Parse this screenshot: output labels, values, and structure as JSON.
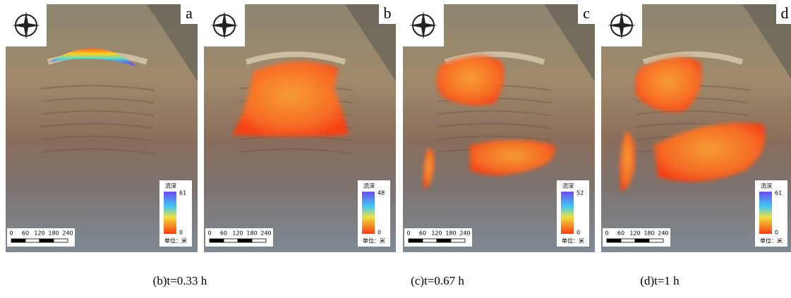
{
  "panels": [
    {
      "letter": "a",
      "legend": {
        "title": "流深",
        "max": "61",
        "min": "0",
        "unit": "单位：米"
      },
      "scale": [
        "0",
        "60",
        "120",
        "180",
        "240"
      ]
    },
    {
      "letter": "b",
      "legend": {
        "title": "流深",
        "max": "48",
        "min": "0",
        "unit": "单位：米"
      },
      "scale": [
        "0",
        "60",
        "120",
        "180",
        "240"
      ]
    },
    {
      "letter": "c",
      "legend": {
        "title": "流深",
        "max": "52",
        "min": "0",
        "unit": "单位：米"
      },
      "scale": [
        "0",
        "60",
        "120",
        "180",
        "240"
      ]
    },
    {
      "letter": "d",
      "legend": {
        "title": "流深",
        "max": "61",
        "min": "0",
        "unit": "单位：米"
      },
      "scale": [
        "0",
        "60",
        "120",
        "180",
        "240"
      ]
    }
  ],
  "captions": [
    "(b)t=0.33 h",
    "(c)t=0.67 h",
    "(d)t=1 h"
  ]
}
